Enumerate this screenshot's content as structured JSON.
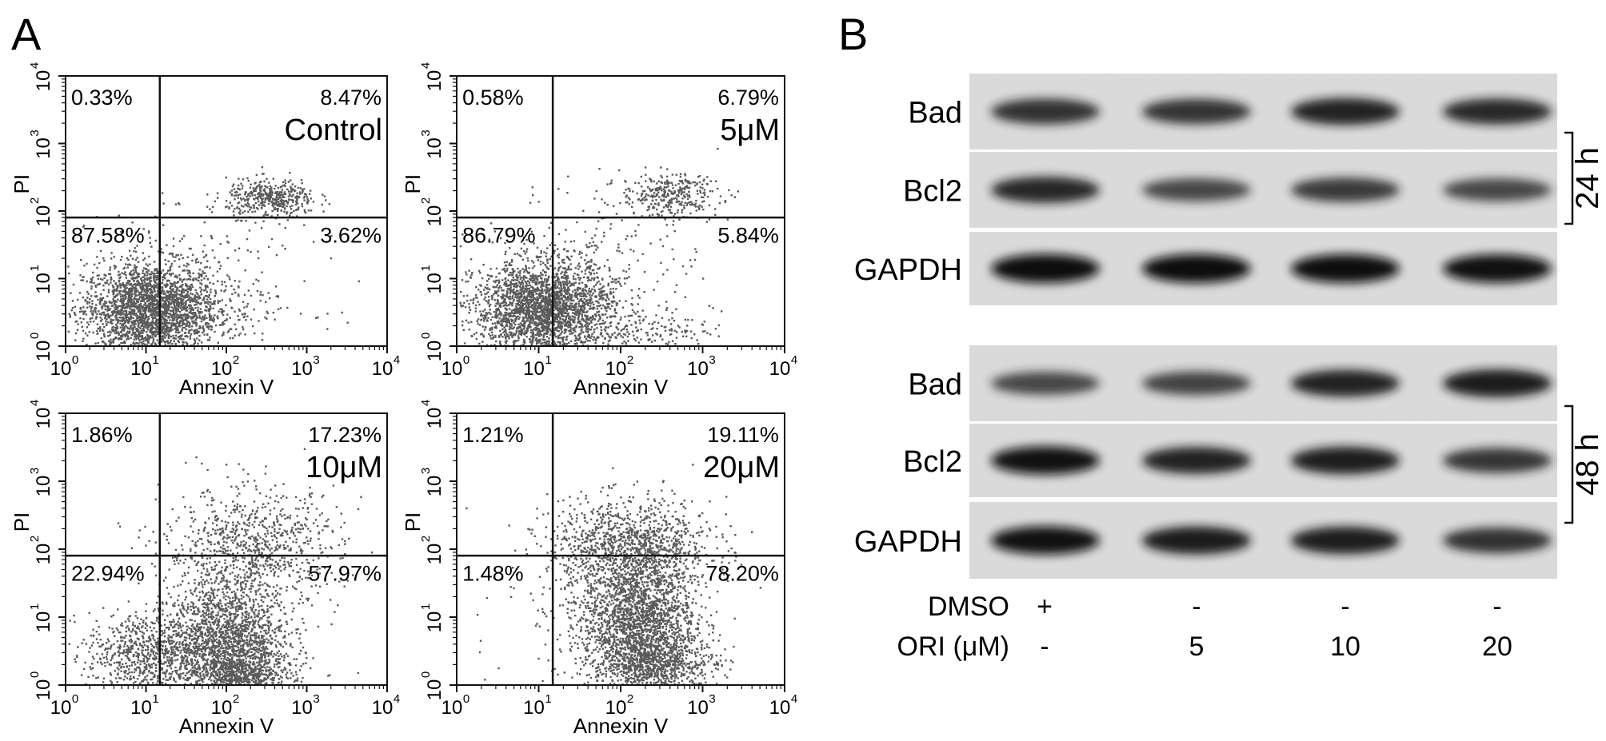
{
  "panel_a": {
    "letter": "A",
    "x_axis_label": "Annexin V",
    "y_axis_label": "PI",
    "tick_labels": [
      "10",
      "10",
      "10",
      "10",
      "10"
    ],
    "tick_exponents": [
      "0",
      "1",
      "2",
      "3",
      "4"
    ],
    "plots": [
      {
        "title": "Control",
        "q_ul": "0.33%",
        "q_ur": "8.47%",
        "q_ll": "87.58%",
        "q_lr": "3.62%"
      },
      {
        "title": "5μM",
        "q_ul": "0.58%",
        "q_ur": "6.79%",
        "q_ll": "86.79%",
        "q_lr": "5.84%"
      },
      {
        "title": "10μM",
        "q_ul": "1.86%",
        "q_ur": "17.23%",
        "q_ll": "22.94%",
        "q_lr": "57.97%"
      },
      {
        "title": "20μM",
        "q_ul": "1.21%",
        "q_ur": "19.11%",
        "q_ll": "1.48%",
        "q_lr": "78.20%"
      }
    ]
  },
  "panel_b": {
    "letter": "B",
    "groups": [
      {
        "time_label": "24 h",
        "bands": [
          "Bad",
          "Bcl2",
          "GAPDH"
        ]
      },
      {
        "time_label": "48 h",
        "bands": [
          "Bad",
          "Bcl2",
          "GAPDH"
        ]
      }
    ],
    "row_labels": [
      "DMSO",
      "ORI (μM)"
    ],
    "dmso_values": [
      "+",
      "-",
      "-",
      "-"
    ],
    "ori_values": [
      "-",
      "5",
      "10",
      "20"
    ]
  }
}
